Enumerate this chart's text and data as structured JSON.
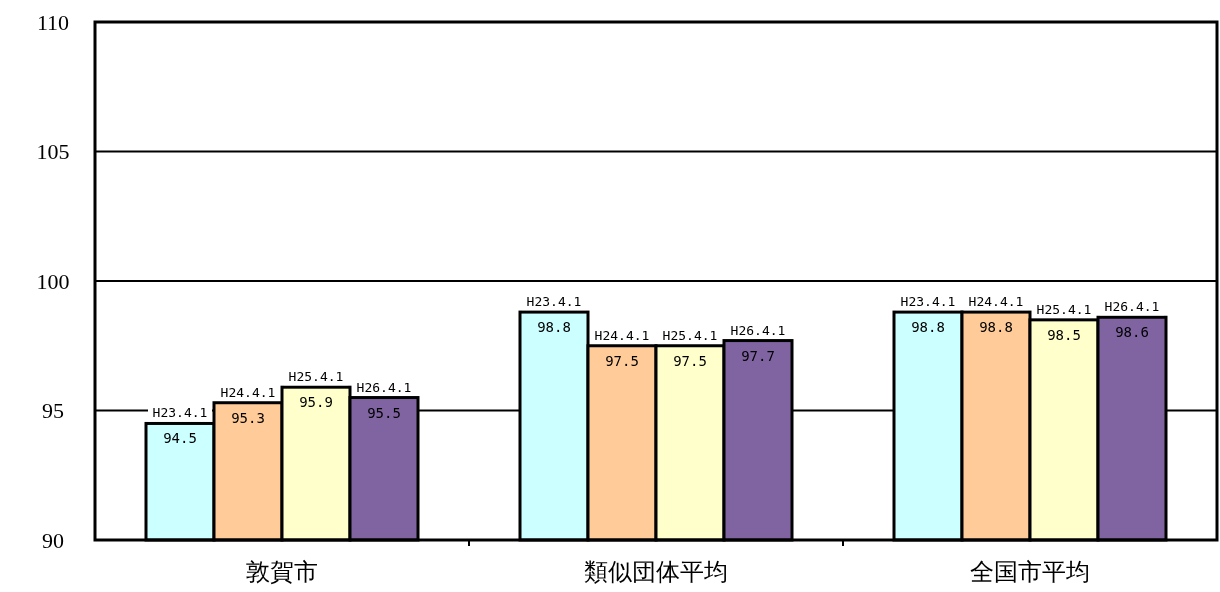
{
  "chart_data": {
    "type": "bar",
    "categories": [
      "敦賀市",
      "類似団体平均",
      "全国市平均"
    ],
    "series": [
      {
        "name": "H23.4.1",
        "color": "#ccffff",
        "values": [
          94.5,
          98.8,
          98.8
        ]
      },
      {
        "name": "H24.4.1",
        "color": "#ffcc99",
        "values": [
          95.3,
          97.5,
          98.8
        ]
      },
      {
        "name": "H25.4.1",
        "color": "#ffffcc",
        "values": [
          95.9,
          97.5,
          98.5
        ]
      },
      {
        "name": "H26.4.1",
        "color": "#8064a2",
        "values": [
          95.5,
          97.7,
          98.6
        ]
      }
    ],
    "ylim": [
      90,
      110
    ],
    "yticks": [
      90,
      95,
      100,
      105,
      110
    ],
    "grid": "y",
    "data_labels": true
  }
}
